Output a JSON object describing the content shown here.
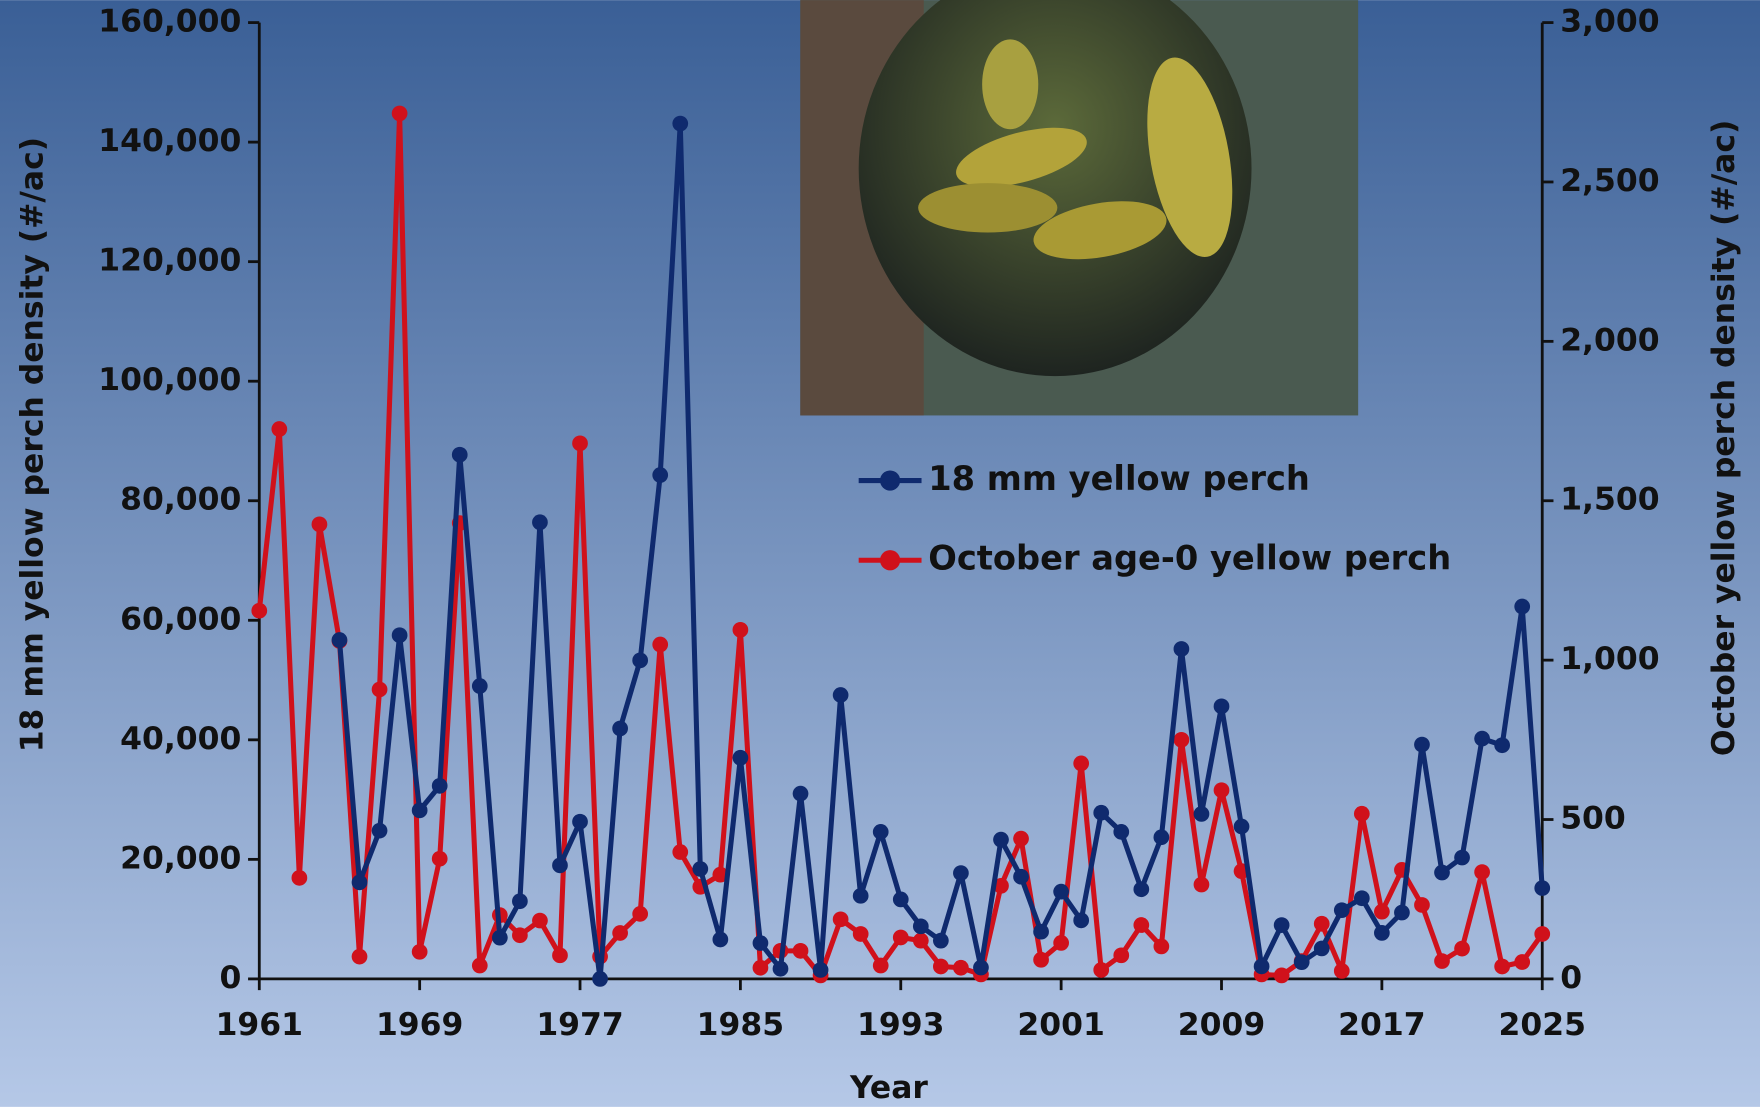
{
  "chart_data": {
    "type": "line",
    "x_label": "Year",
    "y_label": "18 mm yellow perch density (#/ac)",
    "y2_label": "October yellow perch density (#/ac)",
    "x": [
      1961,
      1962,
      1963,
      1964,
      1965,
      1966,
      1967,
      1968,
      1969,
      1970,
      1971,
      1972,
      1973,
      1974,
      1975,
      1976,
      1977,
      1978,
      1979,
      1980,
      1981,
      1982,
      1983,
      1984,
      1985,
      1986,
      1987,
      1988,
      1989,
      1990,
      1991,
      1992,
      1993,
      1994,
      1995,
      1996,
      1997,
      1998,
      1999,
      2000,
      2001,
      2002,
      2003,
      2004,
      2005,
      2006,
      2007,
      2008,
      2009,
      2010,
      2011,
      2012,
      2013,
      2014,
      2015,
      2016,
      2017,
      2018,
      2019,
      2020,
      2021,
      2022,
      2023,
      2024,
      2025
    ],
    "xlim": [
      1961,
      2025
    ],
    "xticks": [
      1961,
      1969,
      1977,
      1985,
      1993,
      2001,
      2009,
      2017,
      2025
    ],
    "ylim": [
      0,
      160000
    ],
    "yticks": [
      0,
      {
        "value": 20000,
        "label": "20,000"
      },
      {
        "value": 40000,
        "label": "40,000"
      },
      {
        "value": 60000,
        "label": "60,000"
      },
      {
        "value": 80000,
        "label": "80,000"
      },
      {
        "value": 100000,
        "label": "100,000"
      },
      {
        "value": 120000,
        "label": "120,000"
      },
      {
        "value": 140000,
        "label": "140,000"
      },
      {
        "value": 160000,
        "label": "160,000"
      }
    ],
    "y2lim": [
      0,
      3000
    ],
    "y2ticks": [
      0,
      500,
      {
        "value": 1000,
        "label": "1,000"
      },
      {
        "value": 1500,
        "label": "1,500"
      },
      {
        "value": 2000,
        "label": "2,000"
      },
      {
        "value": 2500,
        "label": "2,500"
      },
      {
        "value": 3000,
        "label": "3,000"
      }
    ],
    "series": [
      {
        "name": "18 mm yellow perch",
        "color": "#0f2a6e",
        "axis": "y",
        "values": [
          null,
          null,
          null,
          null,
          56700,
          16150,
          24800,
          57500,
          28200,
          32300,
          87700,
          49000,
          6900,
          13000,
          76400,
          19000,
          26300,
          0,
          41900,
          53300,
          84300,
          143100,
          18400,
          6600,
          37000,
          6000,
          1700,
          31000,
          1500,
          47500,
          13900,
          24600,
          13300,
          8800,
          6400,
          17700,
          1900,
          23300,
          17100,
          7900,
          14600,
          9800,
          27800,
          24600,
          15000,
          23700,
          55200,
          27600,
          45600,
          25500,
          2100,
          9000,
          2800,
          5100,
          11500,
          13500,
          7700,
          11100,
          39200,
          17800,
          20300,
          40200,
          39100,
          62300,
          15200
        ]
      },
      {
        "name": "October age-0 yellow perch",
        "color": "#d0111b",
        "axis": "y2",
        "values": [
          1155,
          1725,
          317,
          1426,
          1060,
          70,
          908,
          2715,
          85,
          377,
          1430,
          42,
          200,
          137,
          183,
          74,
          1680,
          70,
          144,
          204,
          1049,
          398,
          289,
          327,
          1095,
          35,
          88,
          88,
          11,
          187,
          141,
          42,
          130,
          120,
          39,
          35,
          14,
          292,
          440,
          60,
          113,
          676,
          28,
          74,
          169,
          102,
          750,
          296,
          592,
          338,
          14,
          11,
          56,
          173,
          25,
          518,
          211,
          342,
          232,
          56,
          95,
          335,
          39,
          53,
          141
        ]
      }
    ],
    "legend": "upper-center"
  }
}
